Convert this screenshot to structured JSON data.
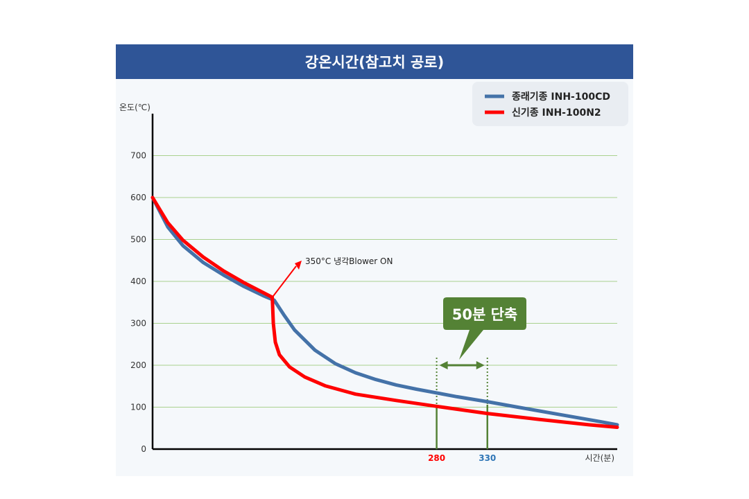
{
  "chart_data": {
    "type": "line",
    "title": "강온시간(참고치 공로)",
    "xlabel": "시간(분)",
    "ylabel": "온도(℃)",
    "xlim": [
      0,
      458
    ],
    "ylim": [
      0,
      800
    ],
    "yticks": [
      0,
      100,
      200,
      300,
      400,
      500,
      600,
      700
    ],
    "grid": true,
    "legend_position": "top-right",
    "series": [
      {
        "name": "종래기종 INH-100CD",
        "color": "#4472a8",
        "x": [
          0,
          15,
          30,
          50,
          70,
          90,
          110,
          120,
          130,
          140,
          160,
          180,
          200,
          220,
          240,
          260,
          280,
          300,
          330,
          360,
          400,
          440,
          458
        ],
        "y": [
          600,
          530,
          485,
          445,
          415,
          388,
          365,
          355,
          318,
          284,
          236,
          204,
          182,
          166,
          153,
          143,
          134,
          125,
          113,
          100,
          83,
          66,
          58
        ]
      },
      {
        "name": "신기종 INH-100N2",
        "color": "#ff0000",
        "x": [
          0,
          15,
          30,
          50,
          70,
          90,
          110,
          118,
          119,
          121,
          125,
          135,
          150,
          170,
          200,
          240,
          280,
          330,
          380,
          430,
          458
        ],
        "y": [
          600,
          540,
          498,
          458,
          425,
          397,
          372,
          362,
          300,
          255,
          225,
          196,
          172,
          151,
          131,
          116,
          102,
          85,
          71,
          58,
          52
        ]
      }
    ],
    "x_markers": [
      {
        "value": 280,
        "label": "280",
        "color": "#ff0000"
      },
      {
        "value": 330,
        "label": "330",
        "color": "#2e75b6"
      }
    ],
    "annotations": [
      {
        "text": "350°C 냉각Blower  ON",
        "at_x": 118,
        "at_y": 362
      },
      {
        "text": "50분 단축",
        "from_x": 280,
        "to_x": 330
      }
    ]
  }
}
